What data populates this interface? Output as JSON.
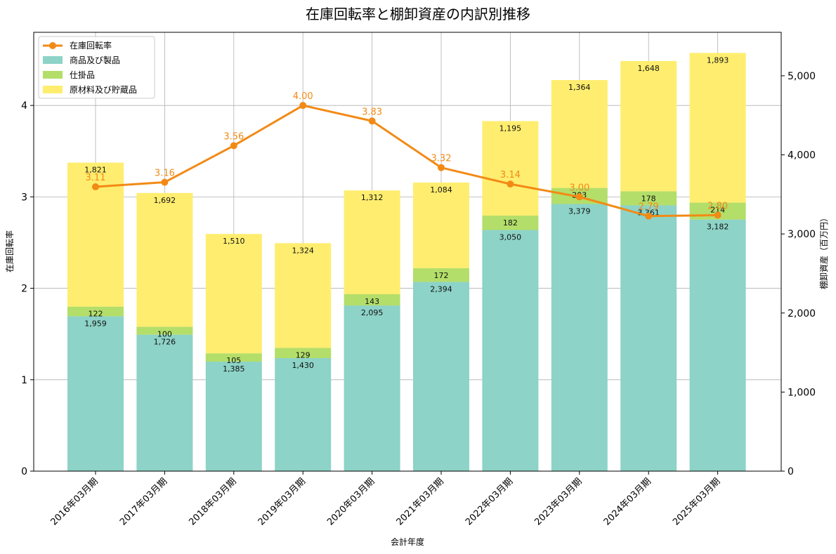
{
  "chart_data": {
    "type": "bar",
    "title": "在庫回転率と棚卸資産の内訳別推移",
    "xlabel": "会計年度",
    "ylabel_left": "在庫回転率",
    "ylabel_right": "棚卸資産（百万円）",
    "ylim_left": [
      0,
      4.8
    ],
    "ylim_right": [
      0,
      5550
    ],
    "yticks_left": [
      "0",
      "1",
      "2",
      "3",
      "4"
    ],
    "yticks_right": [
      "0",
      "1,000",
      "2,000",
      "3,000",
      "4,000",
      "5,000"
    ],
    "categories": [
      "2016年03月期",
      "2017年03月期",
      "2018年03月期",
      "2019年03月期",
      "2020年03月期",
      "2021年03月期",
      "2022年03月期",
      "2023年03月期",
      "2024年03月期",
      "2025年03月期"
    ],
    "series": [
      {
        "name": "商品及び製品",
        "axis": "right",
        "color": "#8dd3c7",
        "values": [
          1959,
          1726,
          1385,
          1430,
          2095,
          2394,
          3050,
          3379,
          3361,
          3182
        ],
        "labels": [
          "1,959",
          "1,726",
          "1,385",
          "1,430",
          "2,095",
          "2,394",
          "3,050",
          "3,379",
          "3,361",
          "3,182"
        ]
      },
      {
        "name": "仕掛品",
        "axis": "right",
        "color": "#b3de69",
        "values": [
          122,
          100,
          105,
          129,
          143,
          172,
          182,
          203,
          178,
          214
        ],
        "labels": [
          "122",
          "100",
          "105",
          "129",
          "143",
          "172",
          "182",
          "203",
          "178",
          "214"
        ]
      },
      {
        "name": "原材料及び貯蔵品",
        "axis": "right",
        "color": "#ffed6f",
        "values": [
          1821,
          1692,
          1510,
          1324,
          1312,
          1084,
          1195,
          1364,
          1648,
          1893
        ],
        "labels": [
          "1,821",
          "1,692",
          "1,510",
          "1,324",
          "1,312",
          "1,084",
          "1,195",
          "1,364",
          "1,648",
          "1,893"
        ]
      },
      {
        "name": "在庫回転率",
        "axis": "left",
        "type": "line",
        "color": "#f28a16",
        "values": [
          3.11,
          3.16,
          3.56,
          4.0,
          3.83,
          3.32,
          3.14,
          3.0,
          2.79,
          2.8
        ],
        "labels": [
          "3.11",
          "3.16",
          "3.56",
          "4.00",
          "3.83",
          "3.32",
          "3.14",
          "3.00",
          "2.79",
          "2.80"
        ]
      }
    ],
    "legend": [
      "在庫回転率",
      "商品及び製品",
      "仕掛品",
      "原材料及び貯蔵品"
    ],
    "legend_position": "top-left",
    "grid": true
  }
}
